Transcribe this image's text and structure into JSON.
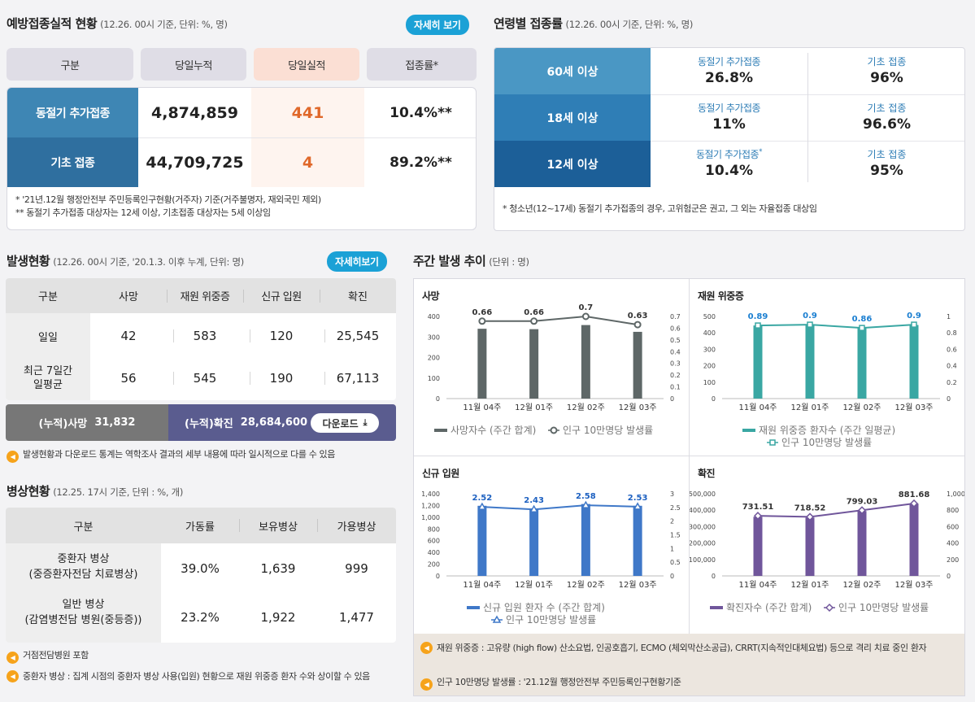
{
  "vaccination": {
    "title": "예방접종실적 현황",
    "subtitle": "(12.26. 00시 기준, 단위: %, 명)",
    "detail_button": "자세히 보기",
    "headers": [
      "구분",
      "당일누적",
      "당일실적",
      "접종률*"
    ],
    "rows": [
      {
        "label": "동절기 추가접종",
        "cumulative": "4,874,859",
        "today": "441",
        "rate": "10.4%**"
      },
      {
        "label": "기초 접종",
        "cumulative": "44,709,725",
        "today": "4",
        "rate": "89.2%**"
      }
    ],
    "notes": [
      "* '21년.12월 행정안전부 주민등록인구현황(거주자) 기준(거주불명자, 재외국민 제외)",
      "** 동절기 추가접종 대상자는 12세 이상, 기초접종 대상자는 5세 이상임"
    ]
  },
  "age_rates": {
    "title": "연령별 접종률",
    "subtitle": "(12.26. 00시 기준, 단위: %, 명)",
    "rows": [
      {
        "age": "60세 이상",
        "booster_label": "동절기 추가접종",
        "booster_rate": "26.8%",
        "basic_label": "기초 접종",
        "basic_rate": "96%",
        "star": ""
      },
      {
        "age": "18세 이상",
        "booster_label": "동절기 추가접종",
        "booster_rate": "11%",
        "basic_label": "기초 접종",
        "basic_rate": "96.6%",
        "star": ""
      },
      {
        "age": "12세 이상",
        "booster_label": "동절기 추가접종",
        "booster_rate": "10.4%",
        "basic_label": "기초 접종",
        "basic_rate": "95%",
        "star": "*"
      }
    ],
    "note": "* 청소년(12~17세) 동절기 추가접종의 경우, 고위험군은 권고, 그 외는 자율접종 대상임"
  },
  "occurrence": {
    "title": "발생현황",
    "subtitle": "(12.26. 00시 기준, '20.1.3. 이후 누계, 단위: 명)",
    "detail_button": "자세히보기",
    "headers": [
      "구분",
      "사망",
      "재원 위중증",
      "신규 입원",
      "확진"
    ],
    "rows": [
      {
        "label": "일일",
        "death": "42",
        "severe": "583",
        "admit": "120",
        "confirmed": "25,545"
      },
      {
        "label": "최근 7일간\n일평균",
        "death": "56",
        "severe": "545",
        "admit": "190",
        "confirmed": "67,113"
      }
    ],
    "cum_death_label": "(누적)사망",
    "cum_death": "31,832",
    "cum_conf_label": "(누적)확진",
    "cum_conf": "28,684,600",
    "download": "다운로드",
    "note": "발생현황과 다운로드 통계는 역학조사 결과의 세부 내용에 따라 일시적으로 다를 수 있음"
  },
  "beds": {
    "title": "병상현황",
    "subtitle": "(12.25. 17시 기준, 단위 : %, 개)",
    "headers": [
      "구분",
      "가동률",
      "보유병상",
      "가용병상"
    ],
    "rows": [
      {
        "label1": "중환자 병상",
        "label2": "(중증환자전담 치료병상)",
        "rate": "39.0%",
        "owned": "1,639",
        "avail": "999"
      },
      {
        "label1": "일반 병상",
        "label2": "(감염병전담 병원(중등증))",
        "rate": "23.2%",
        "owned": "1,922",
        "avail": "1,477"
      }
    ],
    "notes": [
      "거점전담병원 포함",
      "중환자 병상 : 집계 시점의 중환자 병상 사용(입원) 현황으로 재원 위중증 환자 수와 상이할 수 있음"
    ]
  },
  "weekly": {
    "title": "주간 발생 추이",
    "subtitle": "(단위 : 명)",
    "notes": [
      "재원 위중증 : 고유량 (high flow) 산소요법, 인공호흡기, ECMO (체외막산소공급), CRRT(지속적인대체요법) 등으로 격리 치료 중인 환자",
      "인구 10만명당 발생률 : '21.12월 행정안전부 주민등록인구현황기준"
    ]
  },
  "chart_data": [
    {
      "type": "bar",
      "title": "사망",
      "categories": [
        "11월 04주",
        "12월 01주",
        "12월 02주",
        "12월 03주"
      ],
      "series": [
        {
          "name": "사망자수 (주간 합계)",
          "values": [
            340,
            338,
            358,
            325
          ]
        },
        {
          "name": "인구 10만명당 발생률",
          "values": [
            0.66,
            0.66,
            0.7,
            0.63
          ],
          "labels": [
            "0.66",
            "0.66",
            "0.7",
            "0.63"
          ]
        }
      ],
      "ylim": [
        0,
        400
      ],
      "yticks": [
        "0",
        "100",
        "200",
        "300",
        "400"
      ],
      "y2lim": [
        0,
        0.7
      ],
      "y2ticks": [
        "0",
        "0.1",
        "0.2",
        "0.3",
        "0.4",
        "0.5",
        "0.6",
        "0.7"
      ],
      "color": "#5e6767"
    },
    {
      "type": "bar",
      "title": "재원 위중증",
      "categories": [
        "11월 04주",
        "12월 01주",
        "12월 02주",
        "12월 03주"
      ],
      "series": [
        {
          "name": "재원 위중증 환자수 (주간 일평균)",
          "values": [
            445,
            450,
            430,
            448
          ]
        },
        {
          "name": "인구 10만명당 발생률",
          "values": [
            0.89,
            0.9,
            0.86,
            0.9
          ],
          "labels": [
            "0.89",
            "0.9",
            "0.86",
            "0.9"
          ]
        }
      ],
      "ylim": [
        0,
        500
      ],
      "yticks": [
        "0",
        "100",
        "200",
        "300",
        "400",
        "500"
      ],
      "y2lim": [
        0,
        1
      ],
      "y2ticks": [
        "0",
        "0.2",
        "0.4",
        "0.6",
        "0.8",
        "1"
      ],
      "color": "#3aa7a3"
    },
    {
      "type": "bar",
      "title": "신규 입원",
      "categories": [
        "11월 04주",
        "12월 01주",
        "12월 02주",
        "12월 03주"
      ],
      "series": [
        {
          "name": "신규 입원 환자 수 (주간 합계)",
          "values": [
            1195,
            1150,
            1225,
            1195
          ]
        },
        {
          "name": "인구 10만명당 발생률",
          "values": [
            2.52,
            2.43,
            2.58,
            2.53
          ],
          "labels": [
            "2.52",
            "2.43",
            "2.58",
            "2.53"
          ]
        }
      ],
      "ylim": [
        0,
        1400
      ],
      "yticks": [
        "0",
        "200",
        "400",
        "600",
        "800",
        "1,000",
        "1,200",
        "1,400"
      ],
      "y2lim": [
        0,
        3
      ],
      "y2ticks": [
        "0",
        "0.5",
        "1",
        "1.5",
        "2",
        "2.5",
        "3"
      ],
      "color": "#3f78c8"
    },
    {
      "type": "bar",
      "title": "확진",
      "categories": [
        "11월 04주",
        "12월 01주",
        "12월 02주",
        "12월 03주"
      ],
      "series": [
        {
          "name": "확진자수 (주간 합계)",
          "values": [
            360000,
            355000,
            395000,
            440000
          ]
        },
        {
          "name": "인구 10만명당 발생률",
          "values": [
            731.51,
            718.52,
            799.03,
            881.68
          ],
          "labels": [
            "731.51",
            "718.52",
            "799.03",
            "881.68"
          ]
        }
      ],
      "ylim": [
        0,
        500000
      ],
      "yticks": [
        "0",
        "100,000",
        "200,000",
        "300,000",
        "400,000",
        "500,000"
      ],
      "y2lim": [
        0,
        1000
      ],
      "y2ticks": [
        "0",
        "200",
        "400",
        "600",
        "800",
        "1,000"
      ],
      "color": "#70569b"
    }
  ]
}
